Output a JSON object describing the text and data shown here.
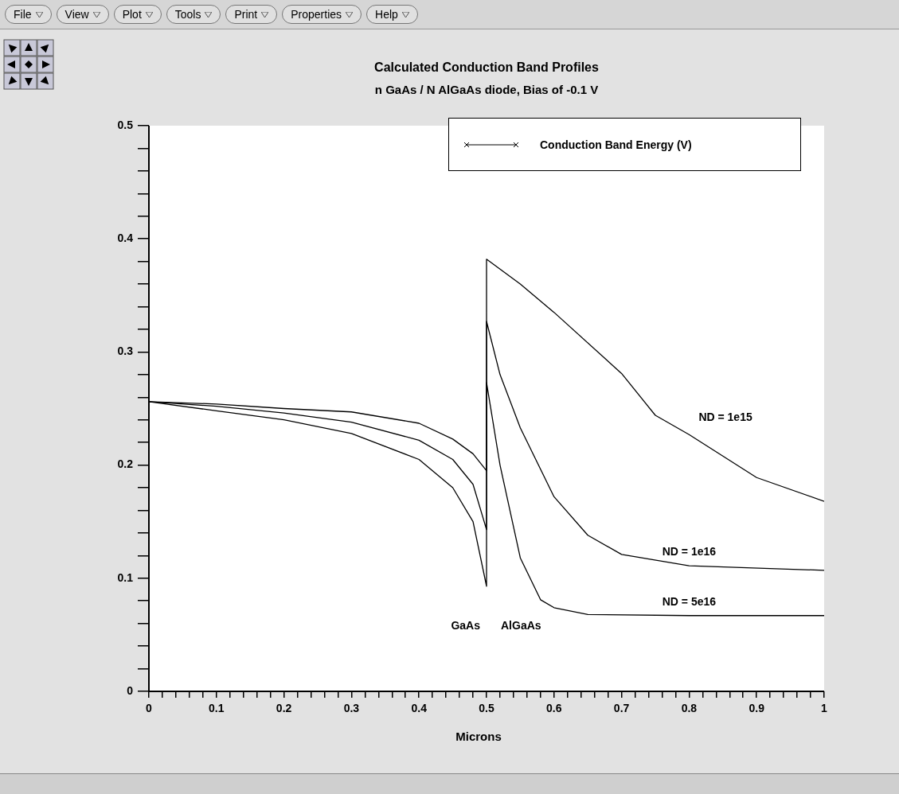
{
  "chart_data": {
    "type": "line",
    "title": "Calculated Conduction Band Profiles",
    "subtitle": "n GaAs / N AlGaAs diode, Bias of -0.1 V",
    "xlabel": "Microns",
    "legend_title": "Conduction Band Energy (V)",
    "marker": "none",
    "grid": false,
    "xlim": [
      0,
      1
    ],
    "ylim": [
      0,
      0.5
    ],
    "xticks": [
      0,
      {
        "value": 0.02,
        "label": null
      },
      {
        "value": 0.04,
        "label": null
      },
      {
        "value": 0.06,
        "label": null
      },
      {
        "value": 0.08,
        "label": null
      },
      0.1,
      {
        "value": 0.12,
        "label": null
      },
      {
        "value": 0.14,
        "label": null
      },
      {
        "value": 0.16,
        "label": null
      },
      {
        "value": 0.18,
        "label": null
      },
      0.2,
      {
        "value": 0.22,
        "label": null
      },
      {
        "value": 0.24,
        "label": null
      },
      {
        "value": 0.26,
        "label": null
      },
      {
        "value": 0.28,
        "label": null
      },
      0.3,
      {
        "value": 0.32,
        "label": null
      },
      {
        "value": 0.34,
        "label": null
      },
      {
        "value": 0.36,
        "label": null
      },
      {
        "value": 0.38,
        "label": null
      },
      0.4,
      {
        "value": 0.42,
        "label": null
      },
      {
        "value": 0.44,
        "label": null
      },
      {
        "value": 0.46,
        "label": null
      },
      {
        "value": 0.48,
        "label": null
      },
      0.5,
      {
        "value": 0.52,
        "label": null
      },
      {
        "value": 0.54,
        "label": null
      },
      {
        "value": 0.56,
        "label": null
      },
      {
        "value": 0.58,
        "label": null
      },
      0.6,
      {
        "value": 0.62,
        "label": null
      },
      {
        "value": 0.64,
        "label": null
      },
      {
        "value": 0.66,
        "label": null
      },
      {
        "value": 0.68,
        "label": null
      },
      0.7,
      {
        "value": 0.72,
        "label": null
      },
      {
        "value": 0.74,
        "label": null
      },
      {
        "value": 0.76,
        "label": null
      },
      {
        "value": 0.78,
        "label": null
      },
      0.8,
      {
        "value": 0.82,
        "label": null
      },
      {
        "value": 0.84,
        "label": null
      },
      {
        "value": 0.86,
        "label": null
      },
      {
        "value": 0.88,
        "label": null
      },
      0.9,
      {
        "value": 0.92,
        "label": null
      },
      {
        "value": 0.94,
        "label": null
      },
      {
        "value": 0.96,
        "label": null
      },
      {
        "value": 0.98,
        "label": null
      },
      1
    ],
    "yticks": [
      0,
      {
        "value": 0.02,
        "label": null
      },
      {
        "value": 0.04,
        "label": null
      },
      {
        "value": 0.06,
        "label": null
      },
      {
        "value": 0.08,
        "label": null
      },
      0.1,
      {
        "value": 0.12,
        "label": null
      },
      {
        "value": 0.14,
        "label": null
      },
      {
        "value": 0.16,
        "label": null
      },
      {
        "value": 0.18,
        "label": null
      },
      0.2,
      {
        "value": 0.22,
        "label": null
      },
      {
        "value": 0.24,
        "label": null
      },
      {
        "value": 0.26,
        "label": null
      },
      {
        "value": 0.28,
        "label": null
      },
      0.3,
      {
        "value": 0.32,
        "label": null
      },
      {
        "value": 0.34,
        "label": null
      },
      {
        "value": 0.36,
        "label": null
      },
      {
        "value": 0.38,
        "label": null
      },
      0.4,
      {
        "value": 0.42,
        "label": null
      },
      {
        "value": 0.44,
        "label": null
      },
      {
        "value": 0.46,
        "label": null
      },
      {
        "value": 0.48,
        "label": null
      },
      0.5
    ],
    "series": [
      {
        "name": "ND = 1e15",
        "color": "#000000",
        "x": [
          0,
          0.1,
          0.2,
          0.3,
          0.4,
          0.45,
          0.48,
          0.5,
          0.5,
          0.55,
          0.6,
          0.7,
          0.75,
          0.8,
          0.9,
          1
        ],
        "values": [
          0.256,
          0.254,
          0.25,
          0.247,
          0.237,
          0.223,
          0.21,
          0.195,
          0.382,
          0.36,
          0.335,
          0.281,
          0.244,
          0.227,
          0.189,
          0.168
        ]
      },
      {
        "name": "ND = 1e16",
        "color": "#000000",
        "x": [
          0,
          0.1,
          0.2,
          0.3,
          0.4,
          0.45,
          0.48,
          0.5,
          0.5,
          0.52,
          0.55,
          0.6,
          0.65,
          0.7,
          0.8,
          1
        ],
        "values": [
          0.256,
          0.252,
          0.246,
          0.238,
          0.222,
          0.205,
          0.183,
          0.143,
          0.327,
          0.28,
          0.233,
          0.172,
          0.138,
          0.121,
          0.111,
          0.107
        ]
      },
      {
        "name": "ND = 5e16",
        "color": "#000000",
        "x": [
          0,
          0.1,
          0.2,
          0.3,
          0.4,
          0.45,
          0.48,
          0.5,
          0.5,
          0.52,
          0.55,
          0.58,
          0.6,
          0.65,
          0.8,
          1
        ],
        "values": [
          0.256,
          0.248,
          0.24,
          0.228,
          0.205,
          0.18,
          0.15,
          0.093,
          0.273,
          0.2,
          0.118,
          0.081,
          0.074,
          0.068,
          0.067,
          0.067
        ]
      }
    ],
    "annotations": [
      "File",
      "View",
      "Plot",
      "Tools",
      "Print",
      "Properties",
      "Help",
      "GaAs",
      "AlGaAs"
    ]
  }
}
